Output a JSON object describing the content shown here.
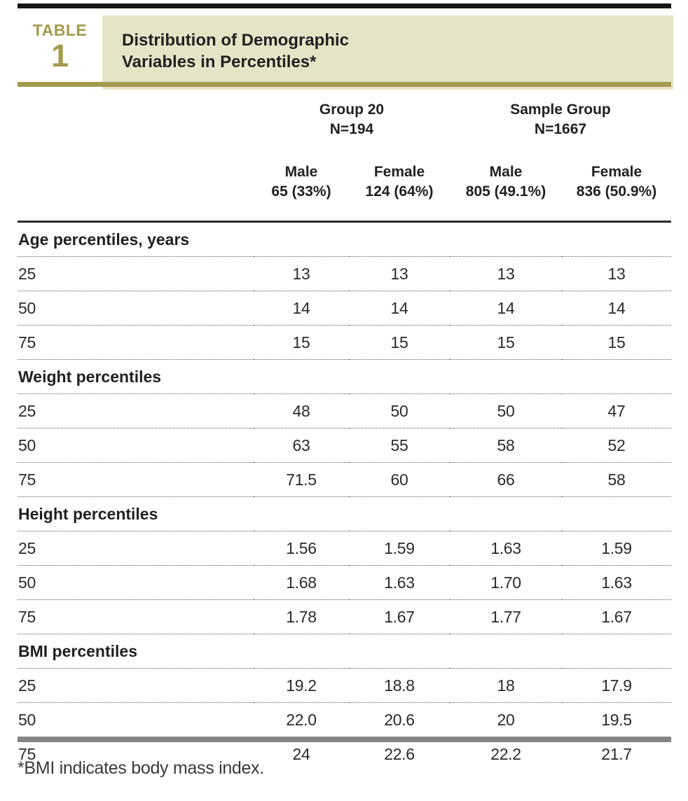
{
  "badge": {
    "label": "TABLE",
    "number": "1"
  },
  "title": {
    "line1": "Distribution of Demographic",
    "line2": "Variables in Percentiles*"
  },
  "groups": [
    {
      "title": "Group 20",
      "n": "N=194"
    },
    {
      "title": "Sample Group",
      "n": "N=1667"
    }
  ],
  "cols": [
    {
      "sex": "Male",
      "count": "65 (33%)"
    },
    {
      "sex": "Female",
      "count": "124 (64%)"
    },
    {
      "sex": "Male",
      "count": "805 (49.1%)"
    },
    {
      "sex": "Female",
      "count": "836 (50.9%)"
    }
  ],
  "sections": [
    {
      "header": "Age percentiles, years",
      "rows": [
        {
          "label": "25",
          "values": [
            "13",
            "13",
            "13",
            "13"
          ]
        },
        {
          "label": "50",
          "values": [
            "14",
            "14",
            "14",
            "14"
          ]
        },
        {
          "label": "75",
          "values": [
            "15",
            "15",
            "15",
            "15"
          ]
        }
      ]
    },
    {
      "header": "Weight percentiles",
      "rows": [
        {
          "label": "25",
          "values": [
            "48",
            "50",
            "50",
            "47"
          ]
        },
        {
          "label": "50",
          "values": [
            "63",
            "55",
            "58",
            "52"
          ]
        },
        {
          "label": "75",
          "values": [
            "71.5",
            "60",
            "66",
            "58"
          ]
        }
      ]
    },
    {
      "header": "Height percentiles",
      "rows": [
        {
          "label": "25",
          "values": [
            "1.56",
            "1.59",
            "1.63",
            "1.59"
          ]
        },
        {
          "label": "50",
          "values": [
            "1.68",
            "1.63",
            "1.70",
            "1.63"
          ]
        },
        {
          "label": "75",
          "values": [
            "1.78",
            "1.67",
            "1.77",
            "1.67"
          ]
        }
      ]
    },
    {
      "header": "BMI percentiles",
      "rows": [
        {
          "label": "25",
          "values": [
            "19.2",
            "18.8",
            "18",
            "17.9"
          ]
        },
        {
          "label": "50",
          "values": [
            "22.0",
            "20.6",
            "20",
            "19.5"
          ]
        },
        {
          "label": "75",
          "values": [
            "24",
            "22.6",
            "22.2",
            "21.7"
          ]
        }
      ]
    }
  ],
  "footnote": {
    "text": "*BMI indicates body mass index."
  },
  "colors": {
    "accent_olive": "#a39b4e",
    "title_box_beige": "#e7e3c6",
    "top_rule_black": "#161616",
    "bottom_rule_gray": "#848484",
    "text_dark": "#231f20"
  }
}
